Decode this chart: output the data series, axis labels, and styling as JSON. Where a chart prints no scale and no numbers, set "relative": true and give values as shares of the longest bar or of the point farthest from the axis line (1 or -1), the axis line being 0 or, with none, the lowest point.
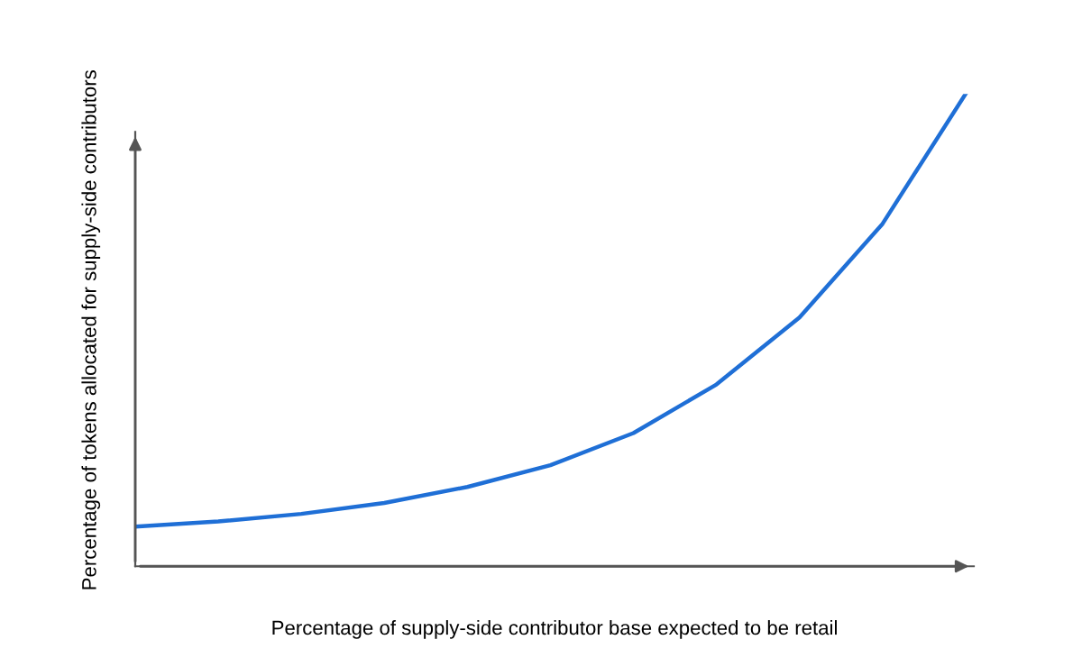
{
  "chart_data": {
    "type": "line",
    "relative": true,
    "xlabel": "Percentage of supply-side contributor base expected to be retail",
    "ylabel": "Percentage of tokens allocated for supply-side contributors",
    "categories": [
      null,
      null,
      null,
      null,
      null,
      null,
      null,
      null,
      null,
      null,
      null
    ],
    "series": [
      {
        "color": "#1f6fd6",
        "values": [
          0.084,
          0.095,
          0.111,
          0.134,
          0.168,
          0.214,
          0.282,
          0.385,
          0.527,
          0.725,
          1.0
        ]
      }
    ],
    "grid": false,
    "legend": false,
    "marker": "none",
    "line_style": "solid"
  }
}
